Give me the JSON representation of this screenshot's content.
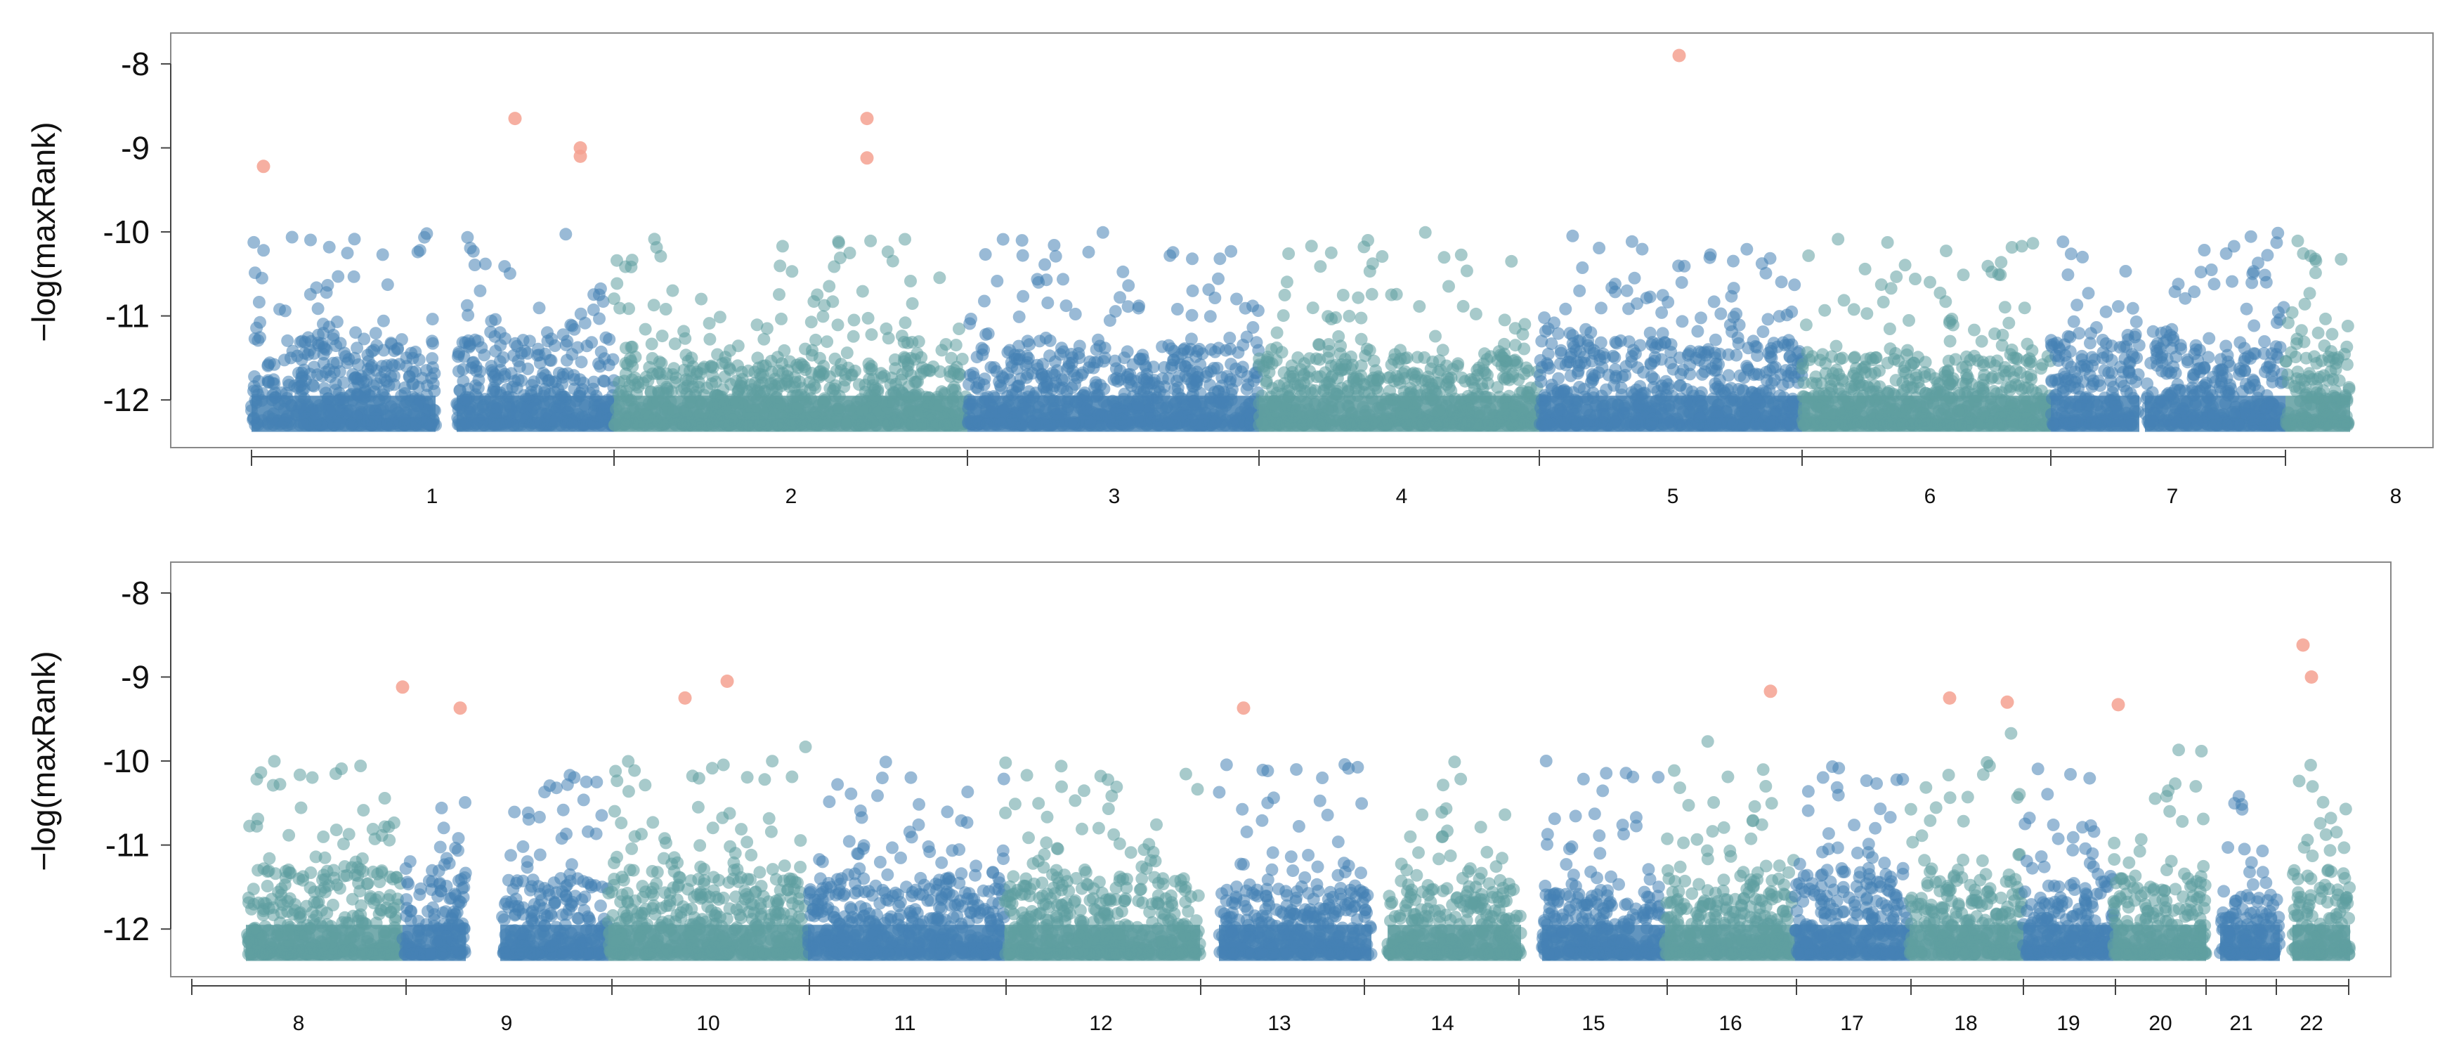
{
  "colors": {
    "blue": "#4682b4",
    "teal": "#5f9ea0",
    "highlight": "#f4a190",
    "axis": "#444444",
    "frame": "#888888"
  },
  "chart_data": [
    {
      "type": "scatter",
      "ylabel": "−log(maxRank)",
      "ylim": [
        -12.4,
        -7.8
      ],
      "yticks": [
        "-8",
        "-9",
        "-10",
        "-11",
        "-12"
      ],
      "ytick_values": [
        -8,
        -9,
        -10,
        -11,
        -12
      ],
      "xtick_labels": [
        "1",
        "2",
        "3",
        "4",
        "5",
        "6",
        "7",
        "8"
      ],
      "chromosomes": [
        {
          "name": "1",
          "dense_top": -11.3,
          "range": [
            0,
            10
          ]
        },
        {
          "name": "2",
          "dense_top": -11.5,
          "range": [
            10,
            20
          ]
        },
        {
          "name": "3",
          "dense_top": -11.4,
          "range": [
            20,
            28
          ]
        },
        {
          "name": "4",
          "dense_top": -11.5,
          "range": [
            28,
            36
          ]
        },
        {
          "name": "5",
          "dense_top": -11.3,
          "range": [
            36,
            44
          ]
        },
        {
          "name": "6",
          "dense_top": -11.5,
          "range": [
            44,
            51
          ]
        },
        {
          "name": "7",
          "dense_top": -11.3,
          "range": [
            51,
            57
          ]
        }
      ],
      "highlights": [
        {
          "chr": "1",
          "y": -9.22
        },
        {
          "chr": "1",
          "y": -8.65
        },
        {
          "chr": "1",
          "y": -9.0
        },
        {
          "chr": "1",
          "y": -9.1
        },
        {
          "chr": "2",
          "y": -8.65
        },
        {
          "chr": "2",
          "y": -9.12
        },
        {
          "chr": "5",
          "y": -7.9
        }
      ]
    },
    {
      "type": "scatter",
      "ylabel": "−log(maxRank)",
      "ylim": [
        -12.4,
        -7.8
      ],
      "yticks": [
        "-8",
        "-9",
        "-10",
        "-11",
        "-12"
      ],
      "ytick_values": [
        -8,
        -9,
        -10,
        -11,
        -12
      ],
      "xtick_labels": [
        "8",
        "9",
        "10",
        "11",
        "12",
        "13",
        "14",
        "15",
        "16",
        "17",
        "18",
        "19",
        "20",
        "21",
        "22"
      ],
      "chromosomes": [
        {
          "name": "8",
          "dense_top": -11.3
        },
        {
          "name": "9",
          "dense_top": -11.4
        },
        {
          "name": "10",
          "dense_top": -11.3
        },
        {
          "name": "11",
          "dense_top": -11.4
        },
        {
          "name": "12",
          "dense_top": -11.4
        },
        {
          "name": "13",
          "dense_top": -11.5
        },
        {
          "name": "14",
          "dense_top": -11.5
        },
        {
          "name": "15",
          "dense_top": -11.5
        },
        {
          "name": "16",
          "dense_top": -11.4
        },
        {
          "name": "17",
          "dense_top": -11.3
        },
        {
          "name": "18",
          "dense_top": -11.4
        },
        {
          "name": "19",
          "dense_top": -11.4
        },
        {
          "name": "20",
          "dense_top": -11.4
        },
        {
          "name": "21",
          "dense_top": -11.6
        },
        {
          "name": "22",
          "dense_top": -11.3
        }
      ],
      "highlights": [
        {
          "chr": "8",
          "y": -9.12
        },
        {
          "chr": "9",
          "y": -9.37
        },
        {
          "chr": "10",
          "y": -9.25
        },
        {
          "chr": "10",
          "y": -9.05
        },
        {
          "chr": "13",
          "y": -9.37
        },
        {
          "chr": "16",
          "y": -9.17
        },
        {
          "chr": "18",
          "y": -9.25
        },
        {
          "chr": "18",
          "y": -9.3
        },
        {
          "chr": "20",
          "y": -9.33
        },
        {
          "chr": "22",
          "y": -8.62
        },
        {
          "chr": "22",
          "y": -9.0
        }
      ]
    }
  ]
}
